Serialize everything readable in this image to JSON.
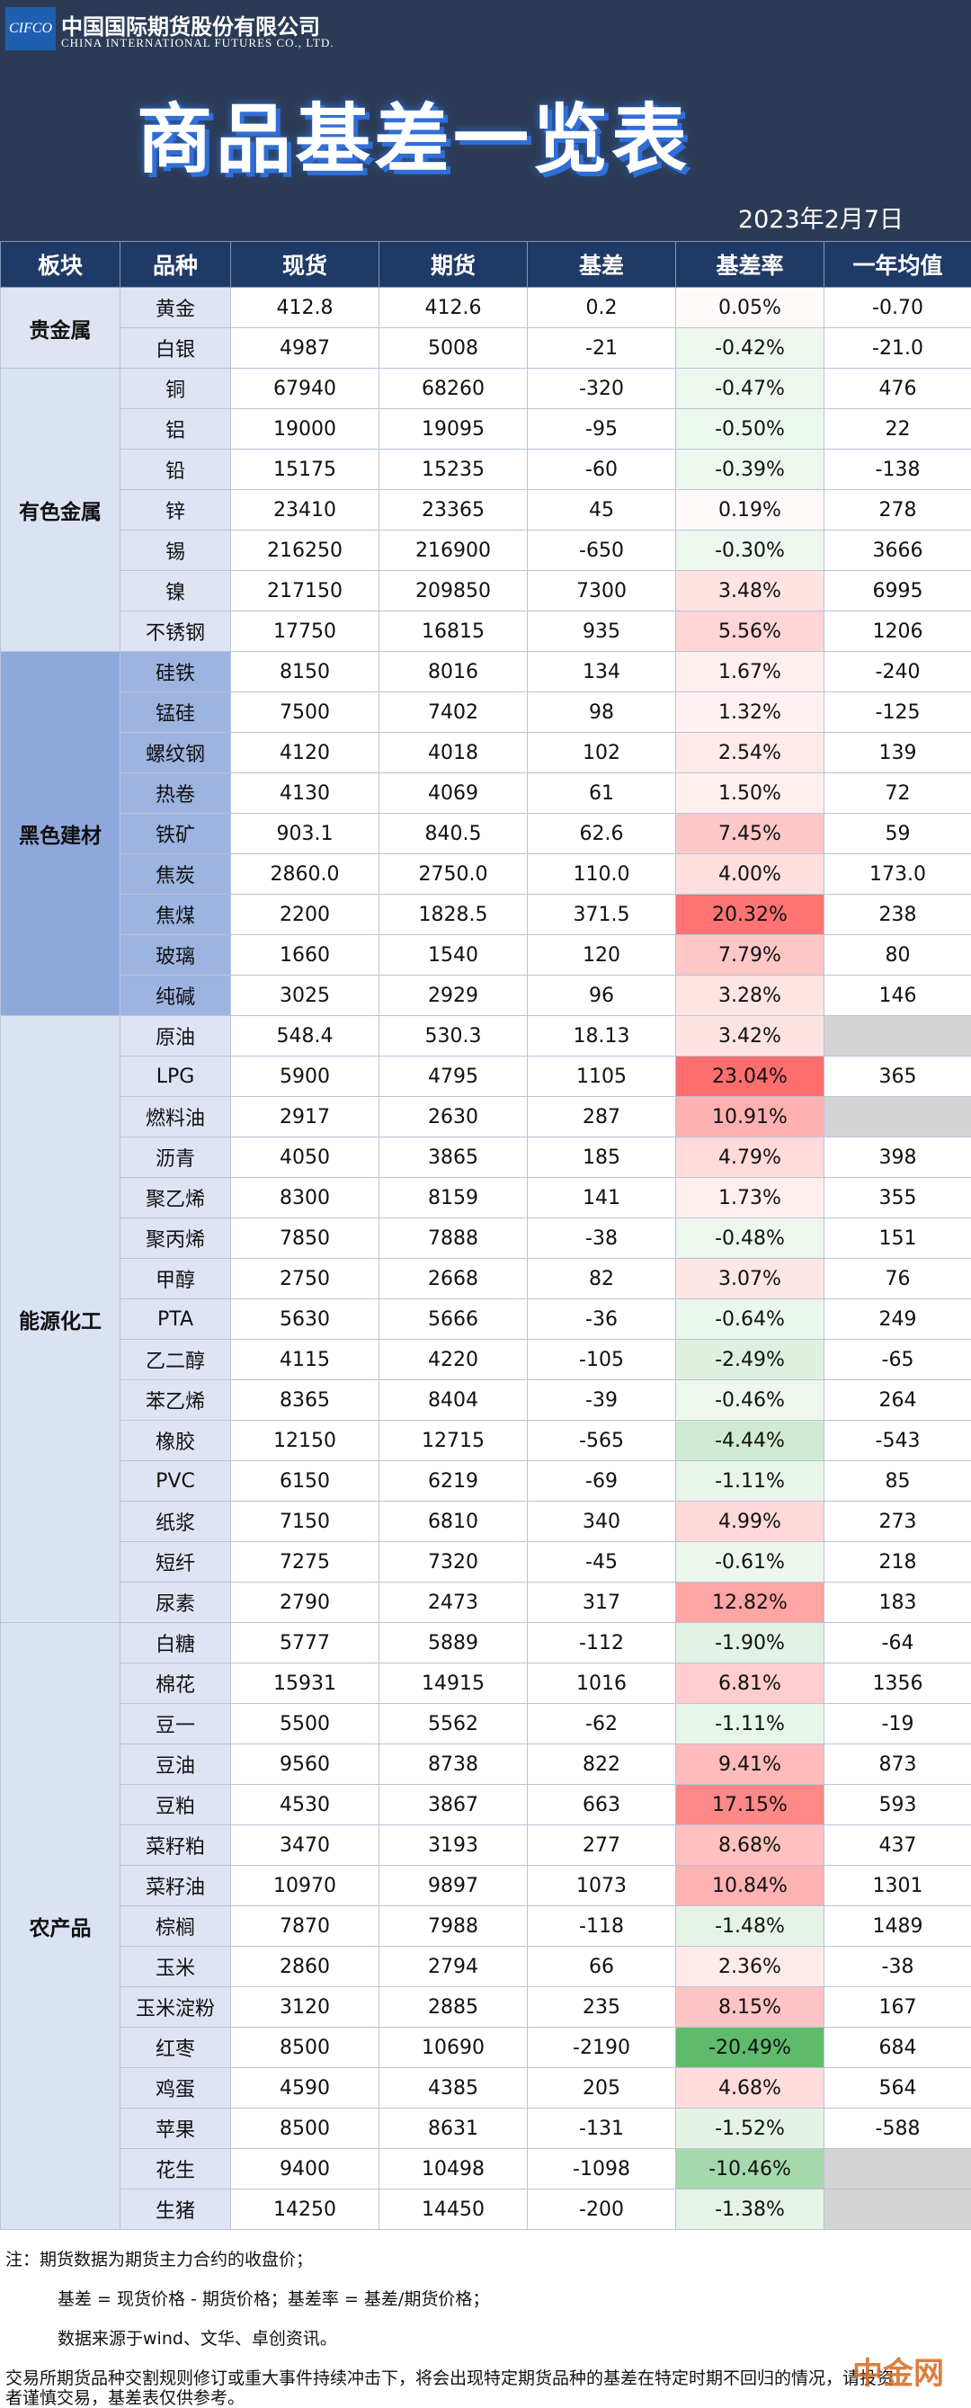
{
  "header": {
    "logo": "CIFCO",
    "company_cn": "中国国际期货股份有限公司",
    "company_en": "CHINA INTERNATIONAL FUTURES CO., LTD.",
    "title": "商品基差一览表",
    "date": "2023年2月7日"
  },
  "table": {
    "columns": [
      "板块",
      "品种",
      "现货",
      "期货",
      "基差",
      "基差率",
      "一年均值"
    ],
    "sectors": [
      {
        "name": "贵金属",
        "rows": [
          [
            "黄金",
            "412.8",
            "412.6",
            "0.2",
            "0.05%",
            "-0.70"
          ],
          [
            "白银",
            "4987",
            "5008",
            "-21",
            "-0.42%",
            "-21.0"
          ]
        ]
      },
      {
        "name": "有色金属",
        "rows": [
          [
            "铜",
            "67940",
            "68260",
            "-320",
            "-0.47%",
            "476"
          ],
          [
            "铝",
            "19000",
            "19095",
            "-95",
            "-0.50%",
            "22"
          ],
          [
            "铅",
            "15175",
            "15235",
            "-60",
            "-0.39%",
            "-138"
          ],
          [
            "锌",
            "23410",
            "23365",
            "45",
            "0.19%",
            "278"
          ],
          [
            "锡",
            "216250",
            "216900",
            "-650",
            "-0.30%",
            "3666"
          ],
          [
            "镍",
            "217150",
            "209850",
            "7300",
            "3.48%",
            "6995"
          ],
          [
            "不锈钢",
            "17750",
            "16815",
            "935",
            "5.56%",
            "1206"
          ]
        ]
      },
      {
        "name": "黑色建材",
        "rows": [
          [
            "硅铁",
            "8150",
            "8016",
            "134",
            "1.67%",
            "-240"
          ],
          [
            "锰硅",
            "7500",
            "7402",
            "98",
            "1.32%",
            "-125"
          ],
          [
            "螺纹钢",
            "4120",
            "4018",
            "102",
            "2.54%",
            "139"
          ],
          [
            "热卷",
            "4130",
            "4069",
            "61",
            "1.50%",
            "72"
          ],
          [
            "铁矿",
            "903.1",
            "840.5",
            "62.6",
            "7.45%",
            "59"
          ],
          [
            "焦炭",
            "2860.0",
            "2750.0",
            "110.0",
            "4.00%",
            "173.0"
          ],
          [
            "焦煤",
            "2200",
            "1828.5",
            "371.5",
            "20.32%",
            "238"
          ],
          [
            "玻璃",
            "1660",
            "1540",
            "120",
            "7.79%",
            "80"
          ],
          [
            "纯碱",
            "3025",
            "2929",
            "96",
            "3.28%",
            "146"
          ]
        ]
      },
      {
        "name": "能源化工",
        "rows": [
          [
            "原油",
            "548.4",
            "530.3",
            "18.13",
            "3.42%",
            null
          ],
          [
            "LPG",
            "5900",
            "4795",
            "1105",
            "23.04%",
            "365"
          ],
          [
            "燃料油",
            "2917",
            "2630",
            "287",
            "10.91%",
            null
          ],
          [
            "沥青",
            "4050",
            "3865",
            "185",
            "4.79%",
            "398"
          ],
          [
            "聚乙烯",
            "8300",
            "8159",
            "141",
            "1.73%",
            "355"
          ],
          [
            "聚丙烯",
            "7850",
            "7888",
            "-38",
            "-0.48%",
            "151"
          ],
          [
            "甲醇",
            "2750",
            "2668",
            "82",
            "3.07%",
            "76"
          ],
          [
            "PTA",
            "5630",
            "5666",
            "-36",
            "-0.64%",
            "249"
          ],
          [
            "乙二醇",
            "4115",
            "4220",
            "-105",
            "-2.49%",
            "-65"
          ],
          [
            "苯乙烯",
            "8365",
            "8404",
            "-39",
            "-0.46%",
            "264"
          ],
          [
            "橡胶",
            "12150",
            "12715",
            "-565",
            "-4.44%",
            "-543"
          ],
          [
            "PVC",
            "6150",
            "6219",
            "-69",
            "-1.11%",
            "85"
          ],
          [
            "纸浆",
            "7150",
            "6810",
            "340",
            "4.99%",
            "273"
          ],
          [
            "短纤",
            "7275",
            "7320",
            "-45",
            "-0.61%",
            "218"
          ],
          [
            "尿素",
            "2790",
            "2473",
            "317",
            "12.82%",
            "183"
          ]
        ]
      },
      {
        "name": "农产品",
        "rows": [
          [
            "白糖",
            "5777",
            "5889",
            "-112",
            "-1.90%",
            "-64"
          ],
          [
            "棉花",
            "15931",
            "14915",
            "1016",
            "6.81%",
            "1356"
          ],
          [
            "豆一",
            "5500",
            "5562",
            "-62",
            "-1.11%",
            "-19"
          ],
          [
            "豆油",
            "9560",
            "8738",
            "822",
            "9.41%",
            "873"
          ],
          [
            "豆粕",
            "4530",
            "3867",
            "663",
            "17.15%",
            "593"
          ],
          [
            "菜籽粕",
            "3470",
            "3193",
            "277",
            "8.68%",
            "437"
          ],
          [
            "菜籽油",
            "10970",
            "9897",
            "1073",
            "10.84%",
            "1301"
          ],
          [
            "棕榈",
            "7870",
            "7988",
            "-118",
            "-1.48%",
            "1489"
          ],
          [
            "玉米",
            "2860",
            "2794",
            "66",
            "2.36%",
            "-38"
          ],
          [
            "玉米淀粉",
            "3120",
            "2885",
            "235",
            "8.15%",
            "167"
          ],
          [
            "红枣",
            "8500",
            "10690",
            "-2190",
            "-20.49%",
            "684"
          ],
          [
            "鸡蛋",
            "4590",
            "4385",
            "205",
            "4.68%",
            "564"
          ],
          [
            "苹果",
            "8500",
            "8631",
            "-131",
            "-1.52%",
            "-588"
          ],
          [
            "花生",
            "9400",
            "10498",
            "-1098",
            "-10.46%",
            null
          ],
          [
            "生猪",
            "14250",
            "14450",
            "-200",
            "-1.38%",
            null
          ]
        ]
      }
    ]
  },
  "notes": [
    "注：期货数据为期货主力合约的收盘价；",
    "基差 = 现货价格 - 期货价格；基差率 = 基差/期货价格；",
    "数据来源于wind、文华、卓创资讯。",
    "交易所期货品种交割规则修订或重大事件持续冲击下，将会出现特定期货品种的基差在特定时期不回归的情况，请投资者谨慎交易，基差表仅供参考。"
  ],
  "watermark": "中金网"
}
